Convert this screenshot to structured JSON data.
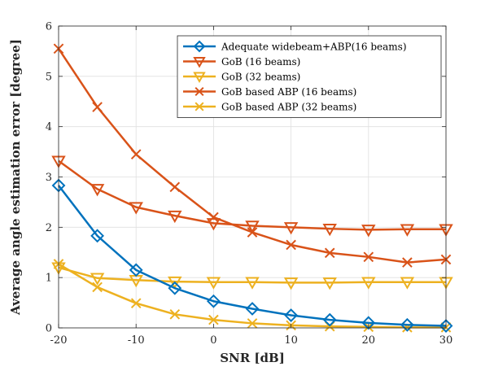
{
  "chart_data": {
    "type": "line",
    "xlabel": "SNR [dB]",
    "ylabel": "Average angle estimation error [degree]",
    "xlim": [
      -20,
      30
    ],
    "ylim": [
      0,
      6
    ],
    "xticks": [
      -20,
      -10,
      0,
      10,
      20,
      30
    ],
    "yticks": [
      0,
      1,
      2,
      3,
      4,
      5,
      6
    ],
    "grid": true,
    "legend_position": "top-right",
    "x": [
      -20,
      -15,
      -10,
      -5,
      0,
      5,
      10,
      15,
      20,
      25,
      30
    ],
    "series": [
      {
        "name": "Adequate widebeam+ABP(16 beams)",
        "color": "#0072BD",
        "marker": "diamond",
        "values": [
          2.83,
          1.83,
          1.15,
          0.79,
          0.53,
          0.38,
          0.25,
          0.16,
          0.1,
          0.06,
          0.04
        ]
      },
      {
        "name": "GoB (16 beams)",
        "color": "#D95319",
        "marker": "triangle-down",
        "values": [
          3.32,
          2.76,
          2.4,
          2.23,
          2.08,
          2.03,
          2.0,
          1.97,
          1.95,
          1.96,
          1.96
        ]
      },
      {
        "name": "GoB (32 beams)",
        "color": "#EDB120",
        "marker": "triangle-down",
        "values": [
          1.2,
          0.99,
          0.95,
          0.92,
          0.91,
          0.91,
          0.9,
          0.9,
          0.91,
          0.91,
          0.91
        ]
      },
      {
        "name": "GoB based ABP (16 beams)",
        "color": "#D95319",
        "marker": "x",
        "values": [
          5.55,
          4.39,
          3.45,
          2.8,
          2.2,
          1.9,
          1.65,
          1.49,
          1.41,
          1.3,
          1.36
        ]
      },
      {
        "name": "GoB based ABP (32 beams)",
        "color": "#EDB120",
        "marker": "x",
        "values": [
          1.27,
          0.81,
          0.49,
          0.27,
          0.16,
          0.09,
          0.05,
          0.03,
          0.02,
          0.01,
          0.01
        ]
      }
    ]
  }
}
